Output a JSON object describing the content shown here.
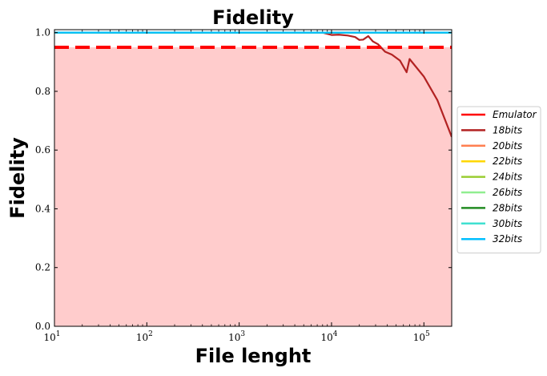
{
  "chart_data": {
    "type": "line",
    "title": "Fidelity",
    "xlabel": "File lenght",
    "ylabel": "Fidelity",
    "xscale": "log",
    "xlim": [
      10,
      200000
    ],
    "ylim": [
      0.0,
      1.01
    ],
    "x_ticks": [
      10,
      100,
      1000,
      10000,
      100000
    ],
    "x_tick_labels": [
      {
        "base": "10",
        "exp": "1"
      },
      {
        "base": "10",
        "exp": "2"
      },
      {
        "base": "10",
        "exp": "3"
      },
      {
        "base": "10",
        "exp": "4"
      },
      {
        "base": "10",
        "exp": "5"
      }
    ],
    "y_ticks": [
      0.0,
      0.2,
      0.4,
      0.6,
      0.8,
      1.0
    ],
    "y_tick_labels": [
      "0.0",
      "0.2",
      "0.4",
      "0.6",
      "0.8",
      "1.0"
    ],
    "grid": false,
    "legend_position": "center-right outside",
    "emulator": {
      "name": "Emulator",
      "value": 0.95,
      "color": "#ff0000",
      "fill_color": "#ffcccc",
      "style": "dashed"
    },
    "series": [
      {
        "name": "18bits",
        "color": "#b22222",
        "x": [
          10,
          1000,
          8000,
          10000,
          12000,
          15000,
          18000,
          20000,
          22000,
          25000,
          28000,
          32000,
          38000,
          45000,
          55000,
          65000,
          70000,
          100000,
          140000,
          200000
        ],
        "y": [
          1.0,
          1.0,
          1.0,
          0.992,
          0.993,
          0.99,
          0.985,
          0.975,
          0.976,
          0.988,
          0.97,
          0.96,
          0.935,
          0.925,
          0.905,
          0.865,
          0.91,
          0.85,
          0.77,
          0.645
        ]
      },
      {
        "name": "20bits",
        "color": "#ff7f50",
        "x": [
          10,
          200000
        ],
        "y": [
          1.0,
          1.0
        ]
      },
      {
        "name": "22bits",
        "color": "#ffd700",
        "x": [
          10,
          200000
        ],
        "y": [
          1.0,
          1.0
        ]
      },
      {
        "name": "24bits",
        "color": "#9acd32",
        "x": [
          10,
          200000
        ],
        "y": [
          1.0,
          1.0
        ]
      },
      {
        "name": "26bits",
        "color": "#90ee90",
        "x": [
          10,
          200000
        ],
        "y": [
          1.0,
          1.0
        ]
      },
      {
        "name": "28bits",
        "color": "#228b22",
        "x": [
          10,
          200000
        ],
        "y": [
          1.0,
          1.0
        ]
      },
      {
        "name": "30bits",
        "color": "#40e0d0",
        "x": [
          10,
          200000
        ],
        "y": [
          1.0,
          1.0
        ]
      },
      {
        "name": "32bits",
        "color": "#00bfff",
        "x": [
          10,
          200000
        ],
        "y": [
          1.0,
          1.0
        ]
      }
    ]
  }
}
